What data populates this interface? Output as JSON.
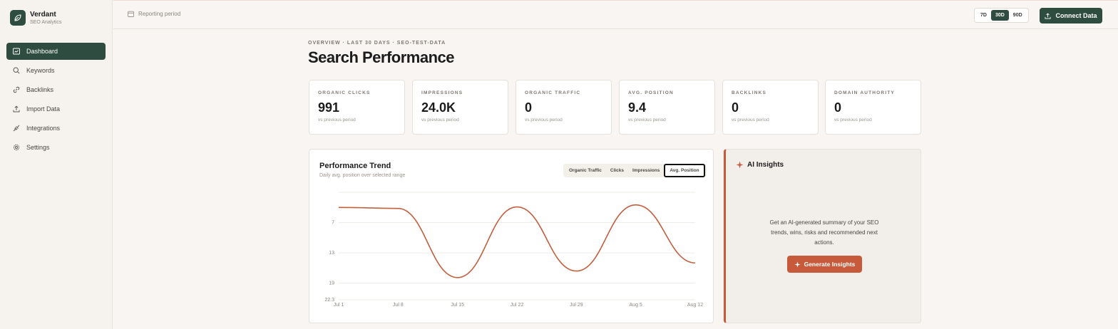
{
  "brand": {
    "name": "Verdant",
    "subtitle": "SEO Analytics"
  },
  "sidebar": {
    "items": [
      {
        "label": "Dashboard",
        "icon": "dashboard-icon",
        "active": true
      },
      {
        "label": "Keywords",
        "icon": "search-icon"
      },
      {
        "label": "Backlinks",
        "icon": "link-icon"
      },
      {
        "label": "Import Data",
        "icon": "upload-icon"
      },
      {
        "label": "Integrations",
        "icon": "plug-icon"
      },
      {
        "label": "Settings",
        "icon": "gear-icon"
      }
    ]
  },
  "topbar": {
    "period_label": "Reporting period",
    "ranges": [
      "7D",
      "30D",
      "90D"
    ],
    "active_range": "30D",
    "connect_label": "Connect Data"
  },
  "header": {
    "breadcrumb": "OVERVIEW · LAST 30 DAYS · SEO-TEST-DATA",
    "title": "Search Performance"
  },
  "kpis": [
    {
      "label": "ORGANIC CLICKS",
      "value": "991",
      "sub": "vs previous period"
    },
    {
      "label": "IMPRESSIONS",
      "value": "24.0K",
      "sub": "vs previous period"
    },
    {
      "label": "ORGANIC TRAFFIC",
      "value": "0",
      "sub": "vs previous period"
    },
    {
      "label": "AVG. POSITION",
      "value": "9.4",
      "sub": "vs previous period"
    },
    {
      "label": "BACKLINKS",
      "value": "0",
      "sub": "vs previous period"
    },
    {
      "label": "DOMAIN AUTHORITY",
      "value": "0",
      "sub": "vs previous period"
    }
  ],
  "trend": {
    "title": "Performance Trend",
    "subtitle": "Daily avg. position over selected range",
    "tabs": [
      "Organic Traffic",
      "Clicks",
      "Impressions",
      "Avg. Position"
    ],
    "active_tab": "Avg. Position"
  },
  "chart_data": {
    "type": "line",
    "x_ticks": [
      "Jul 1",
      "Jul 8",
      "Jul 15",
      "Jul 22",
      "Jul 29",
      "Aug 5",
      "Aug 12"
    ],
    "y_ticks": [
      "7",
      "13",
      "19",
      "22.3"
    ],
    "ylim": [
      1,
      22.3
    ],
    "y_inverted": true,
    "grid": true,
    "series": [
      {
        "color": "#c0603f",
        "points": [
          {
            "x": 0,
            "y": 4.0
          },
          {
            "x": 1,
            "y": 4.2
          },
          {
            "x": 2,
            "y": 17.9
          },
          {
            "x": 3,
            "y": 3.9
          },
          {
            "x": 4,
            "y": 16.6
          },
          {
            "x": 5,
            "y": 3.5
          },
          {
            "x": 6,
            "y": 15.0
          }
        ]
      }
    ]
  },
  "ai": {
    "title": "AI Insights",
    "description": "Get an AI-generated summary of your SEO trends, wins, risks and recommended next actions.",
    "button_label": "Generate Insights"
  },
  "colors": {
    "primary": "#2e4c40",
    "accent": "#c85a3c",
    "line": "#c0603f"
  }
}
